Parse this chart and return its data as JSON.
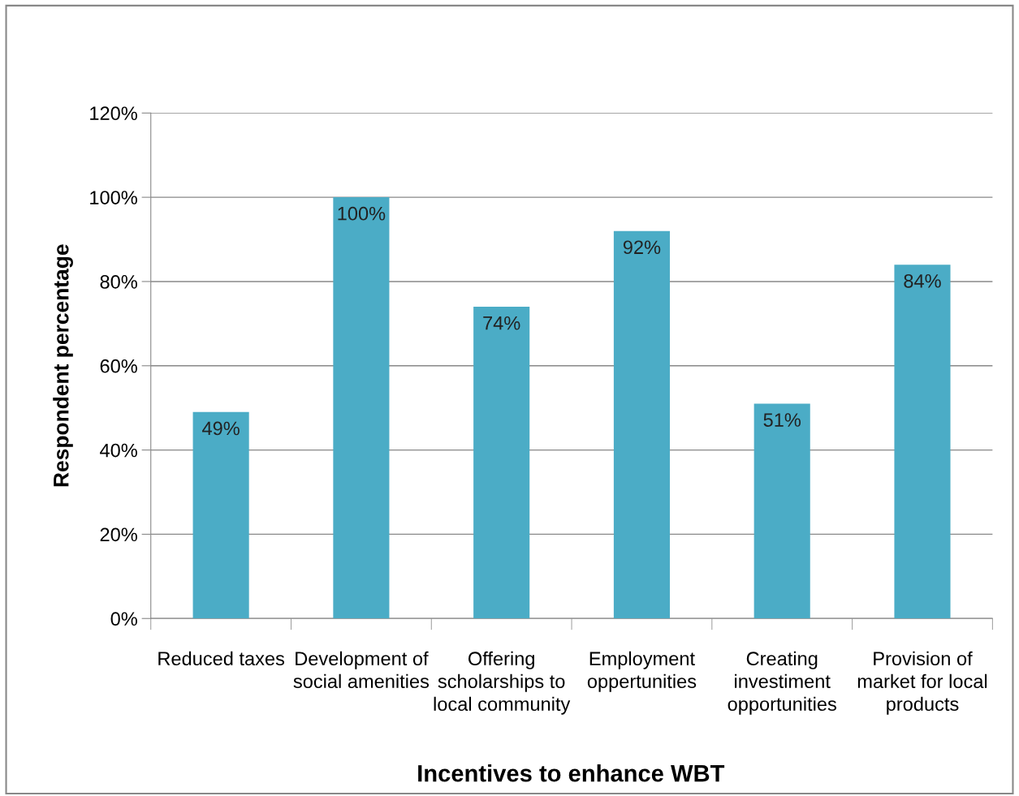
{
  "chart_data": {
    "type": "bar",
    "xlabel": "Incentives to enhance WBT",
    "ylabel": "Respondent percentage",
    "categories": [
      "Reduced taxes",
      "Development of social amenities",
      "Offering scholarships to local community",
      "Employment oppertunities",
      "Creating investiment opportunities",
      "Provision of market for local products"
    ],
    "values": [
      49,
      100,
      74,
      92,
      51,
      84
    ],
    "value_labels": [
      "49%",
      "100%",
      "74%",
      "92%",
      "51%",
      "84%"
    ],
    "color": "#4bacc6",
    "ylim": [
      0,
      120
    ],
    "yticks": [
      {
        "value": 0,
        "label": "0%"
      },
      {
        "value": 20,
        "label": "20%"
      },
      {
        "value": 40,
        "label": "40%"
      },
      {
        "value": 60,
        "label": "60%"
      },
      {
        "value": 80,
        "label": "80%"
      },
      {
        "value": 100,
        "label": "100%"
      },
      {
        "value": 120,
        "label": "120%"
      }
    ],
    "grid": "y"
  }
}
